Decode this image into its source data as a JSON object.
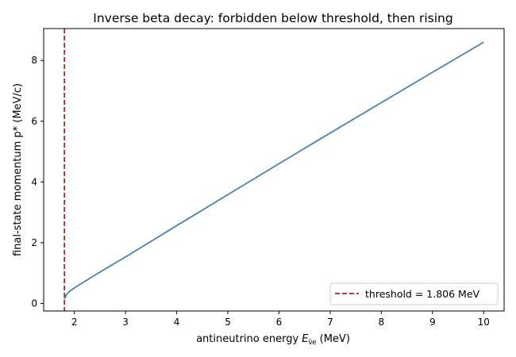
{
  "chart_data": {
    "type": "line",
    "title": "Inverse beta decay: forbidden below threshold, then rising",
    "xlabel": "antineutrino energy",
    "xlabel_symbol": "E",
    "xlabel_subscript": "ν̄e",
    "xlabel_unit": "(MeV)",
    "ylabel": "final-state momentum p* (MeV/c)",
    "xlim": [
      1.4,
      10.4
    ],
    "ylim": [
      -0.25,
      9.05
    ],
    "xticks": [
      2,
      3,
      4,
      5,
      6,
      7,
      8,
      9,
      10
    ],
    "yticks": [
      0,
      2,
      4,
      6,
      8
    ],
    "grid": false,
    "legend_position": "bottom-right",
    "series": [
      {
        "color": "#4682b4",
        "x": [
          1.806,
          1.85,
          1.9,
          2.0,
          2.2,
          2.5,
          3.0,
          4.0,
          5.0,
          6.0,
          7.0,
          8.0,
          9.0,
          10.0
        ],
        "y": [
          0.15,
          0.3,
          0.39,
          0.51,
          0.72,
          1.03,
          1.53,
          2.56,
          3.58,
          4.6,
          5.61,
          6.61,
          7.61,
          8.6
        ]
      }
    ],
    "threshold": {
      "x": 1.806,
      "label": "threshold = 1.806 MeV",
      "color": "#b22222"
    }
  }
}
